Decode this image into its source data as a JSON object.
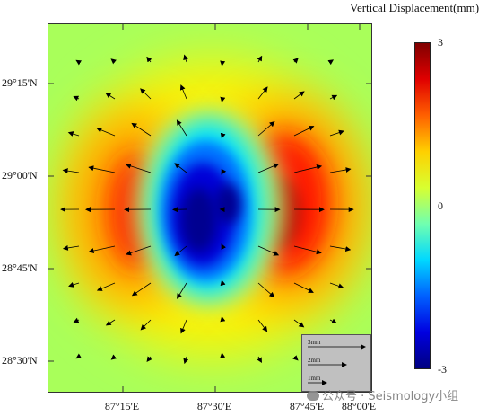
{
  "map": {
    "lat_labels": [
      "29°15'N",
      "29°00'N",
      "28°45'N",
      "28°30'N"
    ],
    "lon_labels": [
      "87°15'E",
      "87°30'E",
      "87°45'E",
      "88°00'E"
    ]
  },
  "colorbar": {
    "title": "Vertical Displacement(mm)",
    "max_label": "3",
    "mid_label": "0",
    "min_label": "-3",
    "colormap": [
      "#000080",
      "#0000e0",
      "#0060ff",
      "#00d8ff",
      "#70ffb0",
      "#d8ff30",
      "#ffd000",
      "#ff6000",
      "#e00000",
      "#800000"
    ]
  },
  "legend": {
    "items": [
      {
        "label": "3mm",
        "mm": 3
      },
      {
        "label": "2mm",
        "mm": 2
      },
      {
        "label": "1mm",
        "mm": 1
      }
    ]
  },
  "watermark": {
    "text": "公众号 · Seismology小组"
  }
}
